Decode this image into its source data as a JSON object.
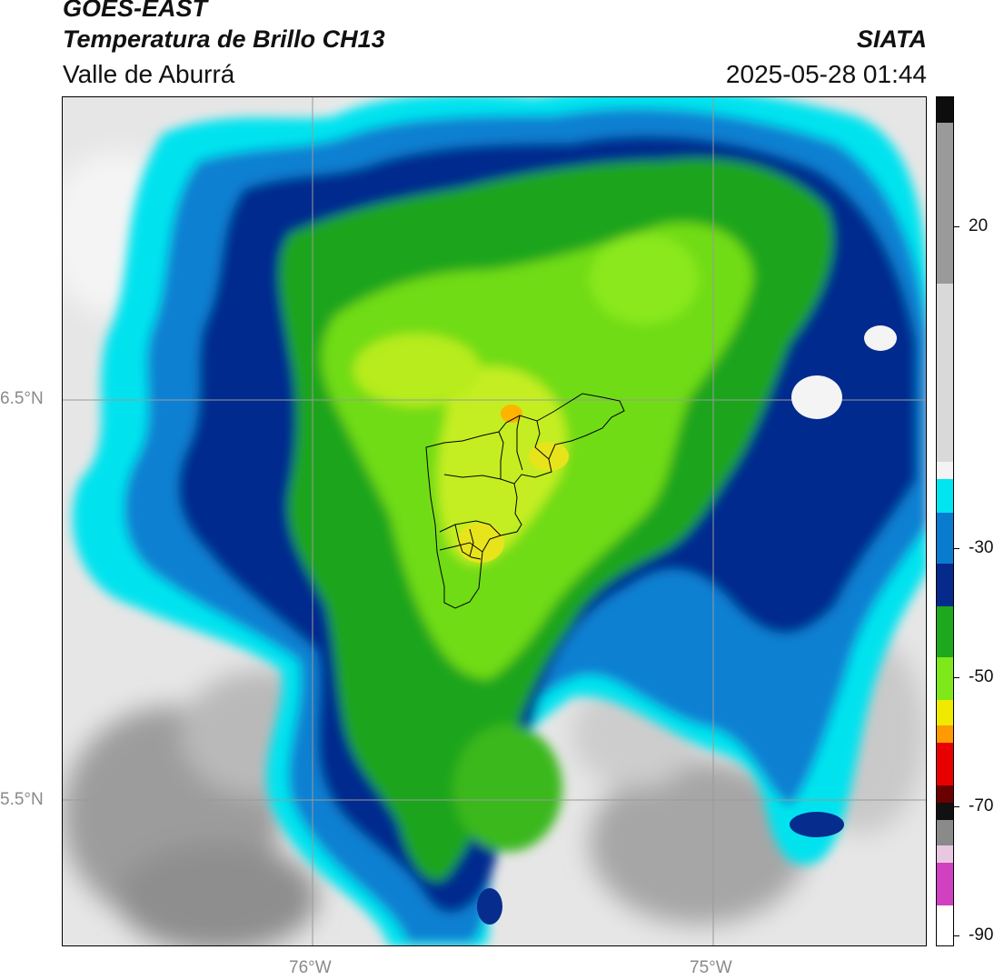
{
  "header": {
    "satellite": "GOES-EAST",
    "product": "Temperatura de Brillo CH13",
    "region": "Valle de Aburrá",
    "agency": "SIATA",
    "datetime": "2025-05-28 01:44"
  },
  "map": {
    "lat_labels": [
      "6.5°N",
      "5.5°N"
    ],
    "lon_labels": [
      "76°W",
      "75°W"
    ],
    "gridline_color": "#9a9a9a",
    "boundary_color": "#000000"
  },
  "colorbar": {
    "labels": [
      "20",
      "-30",
      "-50",
      "-70",
      "-90"
    ],
    "colors": {
      "warm_gray": "#f3f3f3",
      "cyan": "#00e5f0",
      "blue": "#0a7ccf",
      "navy": "#062a8c",
      "green": "#1ea81e",
      "lime": "#7fe81a",
      "yellow": "#f0ea00",
      "orange": "#ff9a00",
      "red": "#e80000",
      "black": "#111111",
      "magenta": "#d040c0"
    }
  }
}
